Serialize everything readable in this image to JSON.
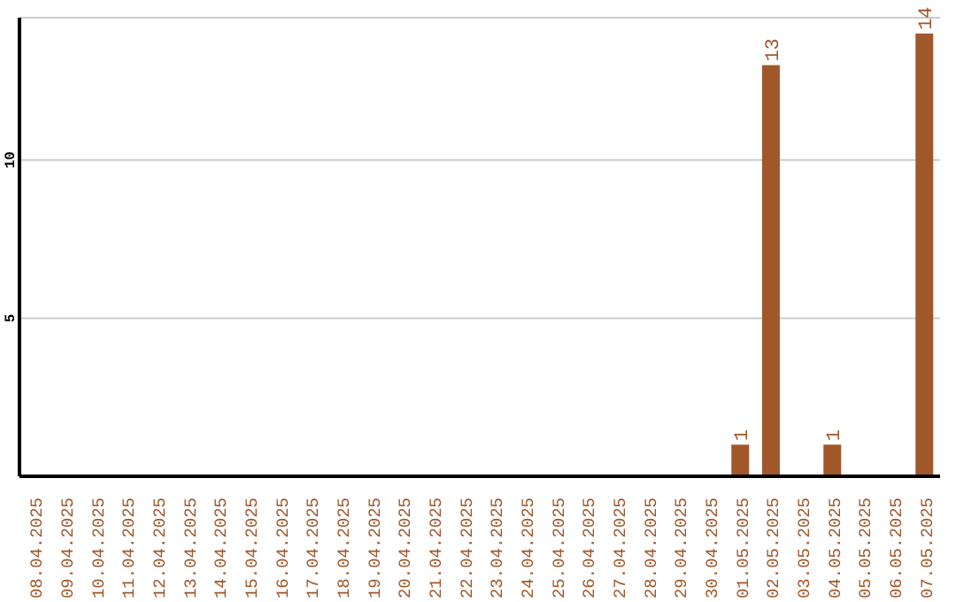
{
  "chart_data": {
    "type": "bar",
    "categories": [
      "08.04.2025",
      "09.04.2025",
      "10.04.2025",
      "11.04.2025",
      "12.04.2025",
      "13.04.2025",
      "14.04.2025",
      "15.04.2025",
      "16.04.2025",
      "17.04.2025",
      "18.04.2025",
      "19.04.2025",
      "20.04.2025",
      "21.04.2025",
      "22.04.2025",
      "23.04.2025",
      "24.04.2025",
      "25.04.2025",
      "26.04.2025",
      "27.04.2025",
      "28.04.2025",
      "29.04.2025",
      "30.04.2025",
      "01.05.2025",
      "02.05.2025",
      "03.05.2025",
      "04.05.2025",
      "05.05.2025",
      "06.05.2025",
      "07.05.2025"
    ],
    "values": [
      0,
      0,
      0,
      0,
      0,
      0,
      0,
      0,
      0,
      0,
      0,
      0,
      0,
      0,
      0,
      0,
      0,
      0,
      0,
      0,
      0,
      0,
      0,
      1,
      13,
      0,
      1,
      0,
      0,
      14
    ],
    "value_labels": [
      null,
      null,
      null,
      null,
      null,
      null,
      null,
      null,
      null,
      null,
      null,
      null,
      null,
      null,
      null,
      null,
      null,
      null,
      null,
      null,
      null,
      null,
      null,
      "1",
      "13",
      null,
      "1",
      null,
      null,
      "14"
    ],
    "color": "#a0572a",
    "ylim": [
      0,
      14.5
    ],
    "yticks": [
      5,
      10
    ],
    "grid": "y"
  }
}
